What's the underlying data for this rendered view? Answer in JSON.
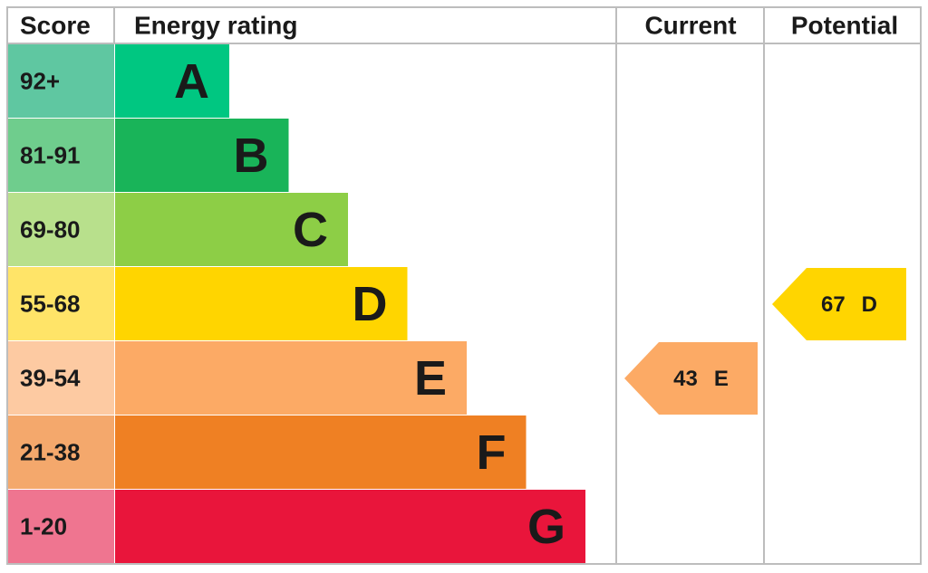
{
  "headers": {
    "score": "Score",
    "rating": "Energy rating",
    "current": "Current",
    "potential": "Potential"
  },
  "bands": [
    {
      "range": "92+",
      "letter": "A",
      "color": "#00c781",
      "score_color": "#5fc7a1"
    },
    {
      "range": "81-91",
      "letter": "B",
      "color": "#19b459",
      "score_color": "#6fcd8d"
    },
    {
      "range": "69-80",
      "letter": "C",
      "color": "#8dce46",
      "score_color": "#b8e08c"
    },
    {
      "range": "55-68",
      "letter": "D",
      "color": "#ffd500",
      "score_color": "#ffe468"
    },
    {
      "range": "39-54",
      "letter": "E",
      "color": "#fcaa65",
      "score_color": "#fdcaa2"
    },
    {
      "range": "21-38",
      "letter": "F",
      "color": "#ef8023",
      "score_color": "#f4a86c"
    },
    {
      "range": "1-20",
      "letter": "G",
      "color": "#e9153b",
      "score_color": "#ef7590"
    }
  ],
  "current": {
    "score": 43,
    "rating": "E"
  },
  "potential": {
    "score": 67,
    "rating": "D"
  }
}
